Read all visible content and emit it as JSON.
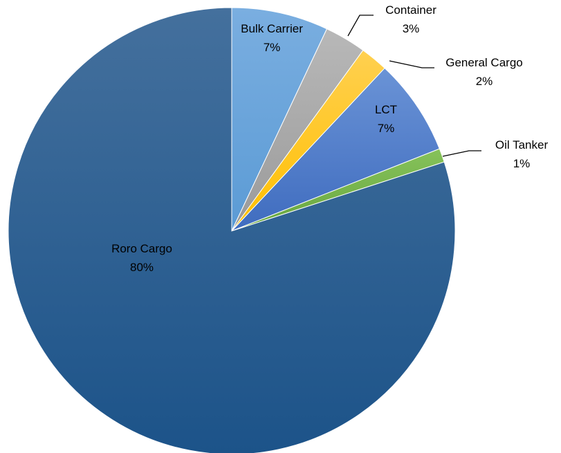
{
  "chart_data": {
    "type": "pie",
    "title": "",
    "start_angle_deg": 0,
    "direction": "clockwise",
    "slices": [
      {
        "name": "Bulk Carrier",
        "value": 7,
        "label": "7%",
        "color": "#5b9bd5",
        "label_color": "#000000"
      },
      {
        "name": "Container",
        "value": 3,
        "label": "3%",
        "color": "#a5a5a5",
        "label_color": "#000000"
      },
      {
        "name": "General Cargo",
        "value": 2,
        "label": "2%",
        "color": "#ffc000",
        "label_color": "#000000"
      },
      {
        "name": "LCT",
        "value": 7,
        "label": "7%",
        "color": "#4472c4",
        "label_color": "#000000"
      },
      {
        "name": "Oil Tanker",
        "value": 1,
        "label": "1%",
        "color": "#70ad47",
        "label_color": "#000000"
      },
      {
        "name": "Roro Cargo",
        "value": 80,
        "label": "80%",
        "color": "#255e91",
        "label_color": "#000000"
      }
    ],
    "legend": "none"
  }
}
